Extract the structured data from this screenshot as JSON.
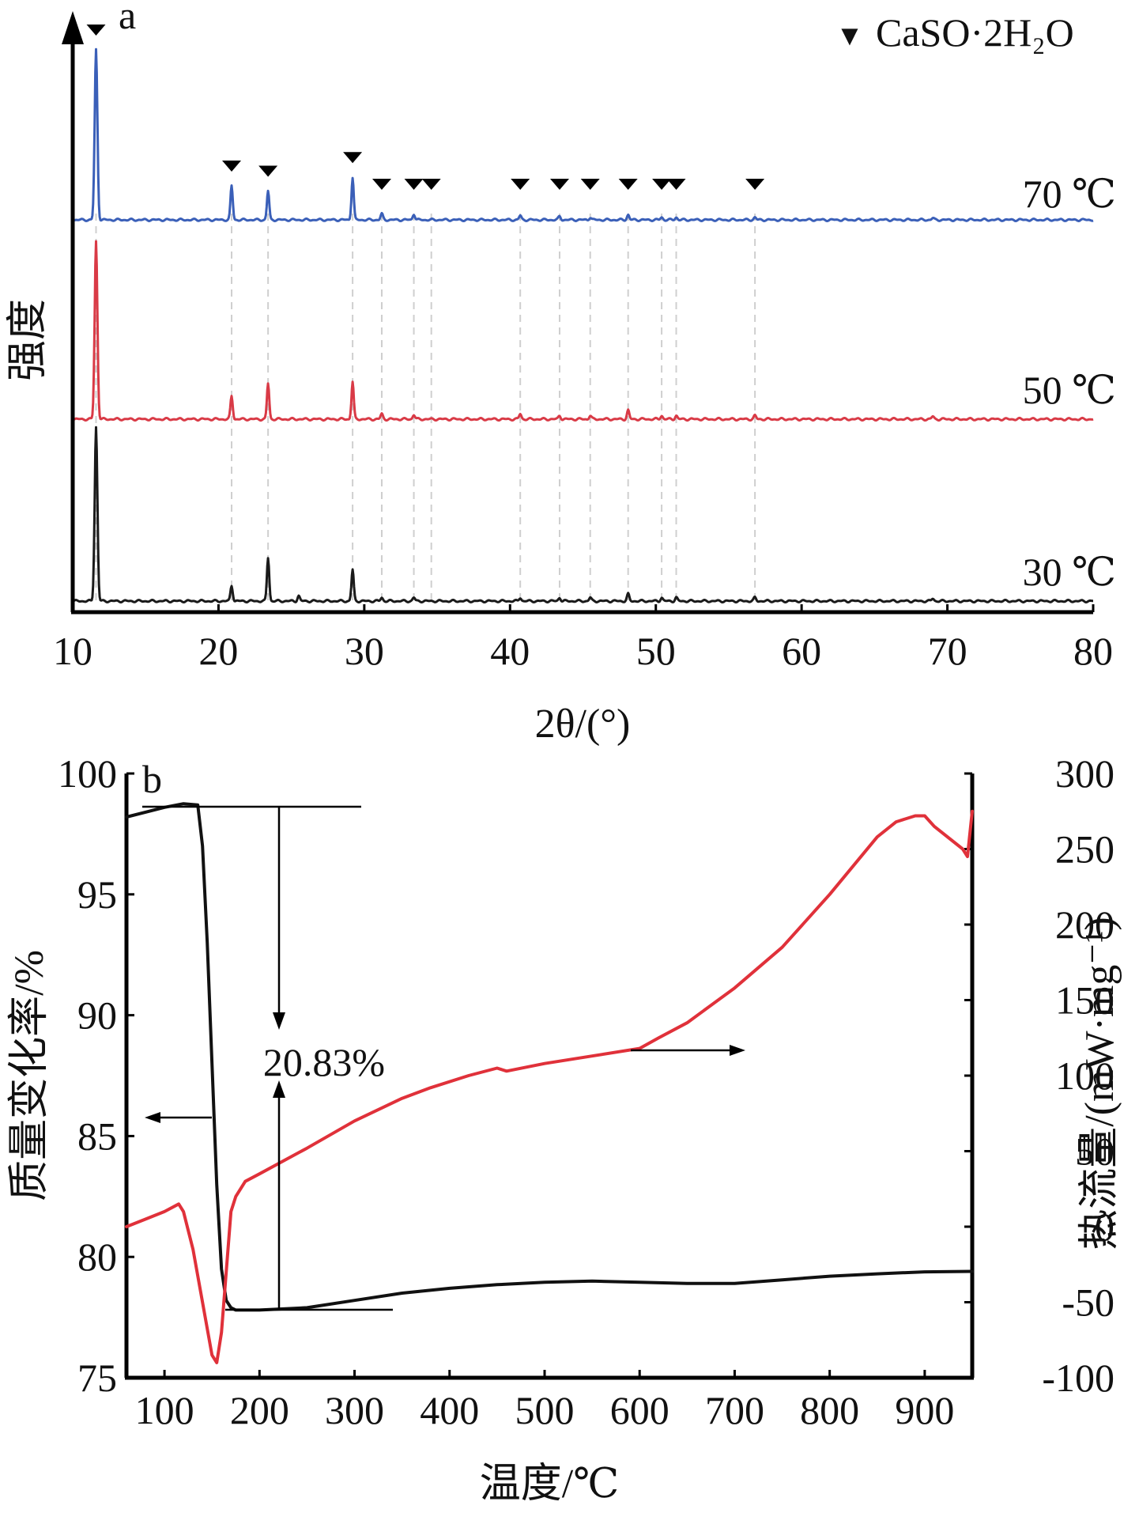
{
  "chart_data": [
    {
      "type": "line",
      "panel_label": "a",
      "xlabel": "2θ/(°)",
      "ylabel": "强度",
      "xlim": [
        10,
        80
      ],
      "xticks": [
        "10",
        "20",
        "30",
        "40",
        "50",
        "60",
        "70",
        "80"
      ],
      "legend": {
        "marker": "▼",
        "label": "CaSO·2H₂O",
        "position": "top-right"
      },
      "marker_positions_2theta": [
        11.6,
        20.9,
        23.4,
        29.2,
        31.2,
        33.4,
        34.6,
        40.7,
        43.4,
        45.5,
        48.1,
        50.4,
        51.4,
        56.8
      ],
      "series": [
        {
          "name": "70 ℃",
          "color": "#3a5fb8",
          "peaks": [
            {
              "x": 11.6,
              "intensity": 100
            },
            {
              "x": 20.9,
              "intensity": 20
            },
            {
              "x": 23.4,
              "intensity": 17
            },
            {
              "x": 29.2,
              "intensity": 25
            },
            {
              "x": 31.2,
              "intensity": 3.5
            },
            {
              "x": 33.4,
              "intensity": 3.5
            },
            {
              "x": 40.7,
              "intensity": 2.5
            },
            {
              "x": 43.4,
              "intensity": 2
            },
            {
              "x": 45.5,
              "intensity": 1.5
            },
            {
              "x": 48.1,
              "intensity": 3
            },
            {
              "x": 50.4,
              "intensity": 1.5
            },
            {
              "x": 51.4,
              "intensity": 1.5
            },
            {
              "x": 56.8,
              "intensity": 1.5
            },
            {
              "x": 69,
              "intensity": 1
            }
          ]
        },
        {
          "name": "50 ℃",
          "color": "#d93a46",
          "peaks": [
            {
              "x": 11.6,
              "intensity": 100
            },
            {
              "x": 20.9,
              "intensity": 13
            },
            {
              "x": 23.4,
              "intensity": 20
            },
            {
              "x": 29.2,
              "intensity": 21
            },
            {
              "x": 31.2,
              "intensity": 3
            },
            {
              "x": 33.4,
              "intensity": 2.5
            },
            {
              "x": 40.7,
              "intensity": 3
            },
            {
              "x": 43.4,
              "intensity": 2
            },
            {
              "x": 45.5,
              "intensity": 2
            },
            {
              "x": 48.1,
              "intensity": 5
            },
            {
              "x": 50.4,
              "intensity": 2
            },
            {
              "x": 51.4,
              "intensity": 2
            },
            {
              "x": 56.8,
              "intensity": 2
            },
            {
              "x": 69,
              "intensity": 1.5
            }
          ]
        },
        {
          "name": "30 ℃",
          "color": "#1a1a1a",
          "peaks": [
            {
              "x": 11.6,
              "intensity": 100
            },
            {
              "x": 20.9,
              "intensity": 9
            },
            {
              "x": 23.4,
              "intensity": 25
            },
            {
              "x": 25.5,
              "intensity": 3
            },
            {
              "x": 29.2,
              "intensity": 18
            },
            {
              "x": 31.2,
              "intensity": 2
            },
            {
              "x": 33.4,
              "intensity": 2
            },
            {
              "x": 40.7,
              "intensity": 2
            },
            {
              "x": 43.4,
              "intensity": 2
            },
            {
              "x": 45.5,
              "intensity": 2
            },
            {
              "x": 48.1,
              "intensity": 4
            },
            {
              "x": 50.4,
              "intensity": 2
            },
            {
              "x": 51.4,
              "intensity": 2
            },
            {
              "x": 56.8,
              "intensity": 2
            },
            {
              "x": 69,
              "intensity": 1.5
            }
          ]
        }
      ]
    },
    {
      "type": "line",
      "panel_label": "b",
      "xlabel": "温度/℃",
      "ylabel": "质量变化率/%",
      "y2label": "热流量/(mW·mg⁻¹)",
      "xlim": [
        60,
        950
      ],
      "ylim": [
        75,
        100
      ],
      "y2lim": [
        -100,
        300
      ],
      "xticks": [
        "100",
        "200",
        "300",
        "400",
        "500",
        "600",
        "700",
        "800",
        "900"
      ],
      "yticks": [
        "75",
        "80",
        "85",
        "90",
        "95",
        "100"
      ],
      "y2ticks": [
        "-100",
        "-50",
        "0",
        "50",
        "100",
        "150",
        "200",
        "250",
        "300"
      ],
      "annotation": "20.83%",
      "series": [
        {
          "axis": "left",
          "color": "#111111",
          "x": [
            60,
            80,
            100,
            120,
            135,
            140,
            145,
            150,
            155,
            160,
            165,
            170,
            175,
            180,
            200,
            250,
            300,
            350,
            400,
            450,
            500,
            550,
            600,
            650,
            700,
            750,
            800,
            850,
            900,
            950
          ],
          "y": [
            98.2,
            98.4,
            98.6,
            98.75,
            98.7,
            97,
            93,
            88,
            83,
            79.5,
            78.2,
            77.9,
            77.8,
            77.8,
            77.8,
            77.9,
            78.2,
            78.5,
            78.7,
            78.85,
            78.95,
            79,
            78.95,
            78.9,
            78.9,
            79.05,
            79.2,
            79.3,
            79.38,
            79.4
          ]
        },
        {
          "axis": "right",
          "color": "#e0313a",
          "x": [
            60,
            80,
            100,
            115,
            120,
            130,
            140,
            150,
            155,
            160,
            165,
            170,
            175,
            185,
            200,
            250,
            300,
            350,
            380,
            420,
            450,
            460,
            500,
            550,
            600,
            620,
            650,
            700,
            750,
            800,
            850,
            870,
            890,
            900,
            910,
            940,
            945,
            950
          ],
          "y": [
            0,
            5,
            10,
            15,
            10,
            -15,
            -50,
            -85,
            -90,
            -70,
            -30,
            10,
            20,
            30,
            35,
            52,
            70,
            85,
            92,
            100,
            105,
            103,
            108,
            113,
            118,
            125,
            135,
            158,
            185,
            220,
            258,
            268,
            272,
            272,
            265,
            250,
            245,
            275
          ]
        }
      ]
    }
  ]
}
